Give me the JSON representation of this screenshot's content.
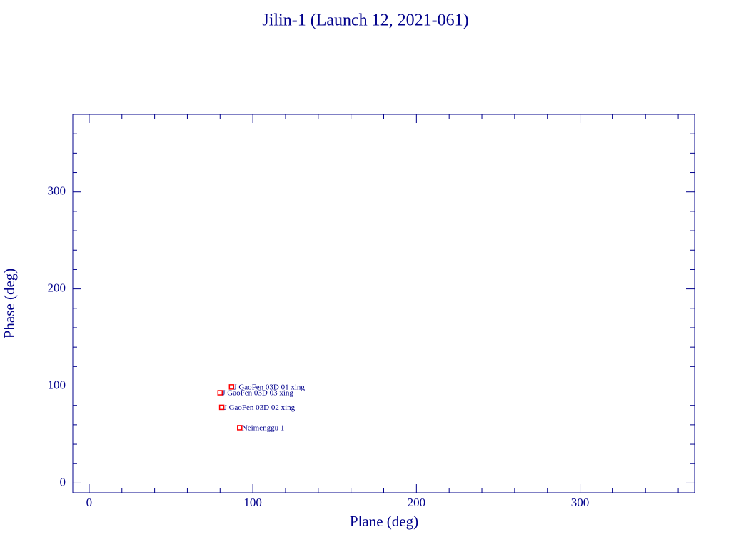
{
  "chart_data": {
    "type": "scatter",
    "title": "Jilin-1 (Launch 12, 2021-061)",
    "x_label": "Plane (deg)",
    "y_label": "Phase (deg)",
    "labels": [
      "J GaoFen 03D 01 xing",
      "J GaoFen 03D 03 xing",
      "J GaoFen 03D 02 xing",
      "Neimenggu 1"
    ],
    "x": [
      87,
      80,
      81,
      92
    ],
    "values": [
      99,
      93,
      78,
      57
    ],
    "color": "#ff0000",
    "axis_color": "#00008b",
    "xlim": [
      -10,
      370
    ],
    "ylim": [
      -10,
      380
    ],
    "xticks": [
      0,
      100,
      200,
      300
    ],
    "yticks": [
      0,
      100,
      200,
      300
    ],
    "xminorticks": [
      20,
      40,
      60,
      80,
      120,
      140,
      160,
      180,
      220,
      240,
      260,
      280,
      320,
      340,
      360
    ],
    "yminorticks": [
      20,
      40,
      60,
      80,
      120,
      140,
      160,
      180,
      220,
      240,
      260,
      280,
      320,
      340,
      360
    ]
  }
}
